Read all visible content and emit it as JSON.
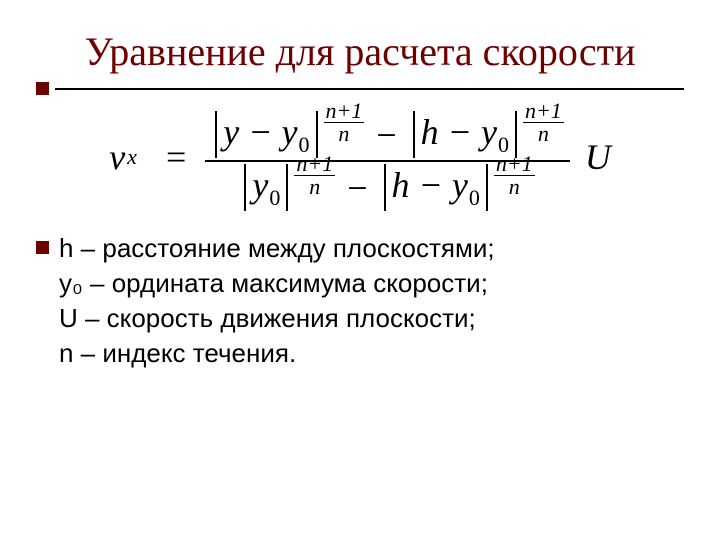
{
  "colors": {
    "title": "#6e0000",
    "accent_square": "#6e0000",
    "rule_line": "#000000",
    "text": "#000000",
    "background": "#ffffff"
  },
  "typography": {
    "title_font": "Times New Roman",
    "title_size_pt": 30,
    "body_font": "Arial",
    "body_size_pt": 20,
    "formula_font": "Times New Roman",
    "formula_size_pt": 27
  },
  "title": "Уравнение для расчета скорости",
  "formula": {
    "lhs_var": "v",
    "lhs_sub": "x",
    "eq": "=",
    "abs_y_minus_y0": "y − y",
    "abs_h_minus_y0": "h − y",
    "abs_y0": "y",
    "sub0": "0",
    "exp_num": "n+1",
    "exp_den": "n",
    "minus": "−",
    "U": "U"
  },
  "legend": {
    "h": "h – расстояние между плоскостями;",
    "y0": "y₀ – ордината максимума скорости;",
    "U": "U – скорость движения плоскости;",
    "n": "n – индекс течения."
  }
}
